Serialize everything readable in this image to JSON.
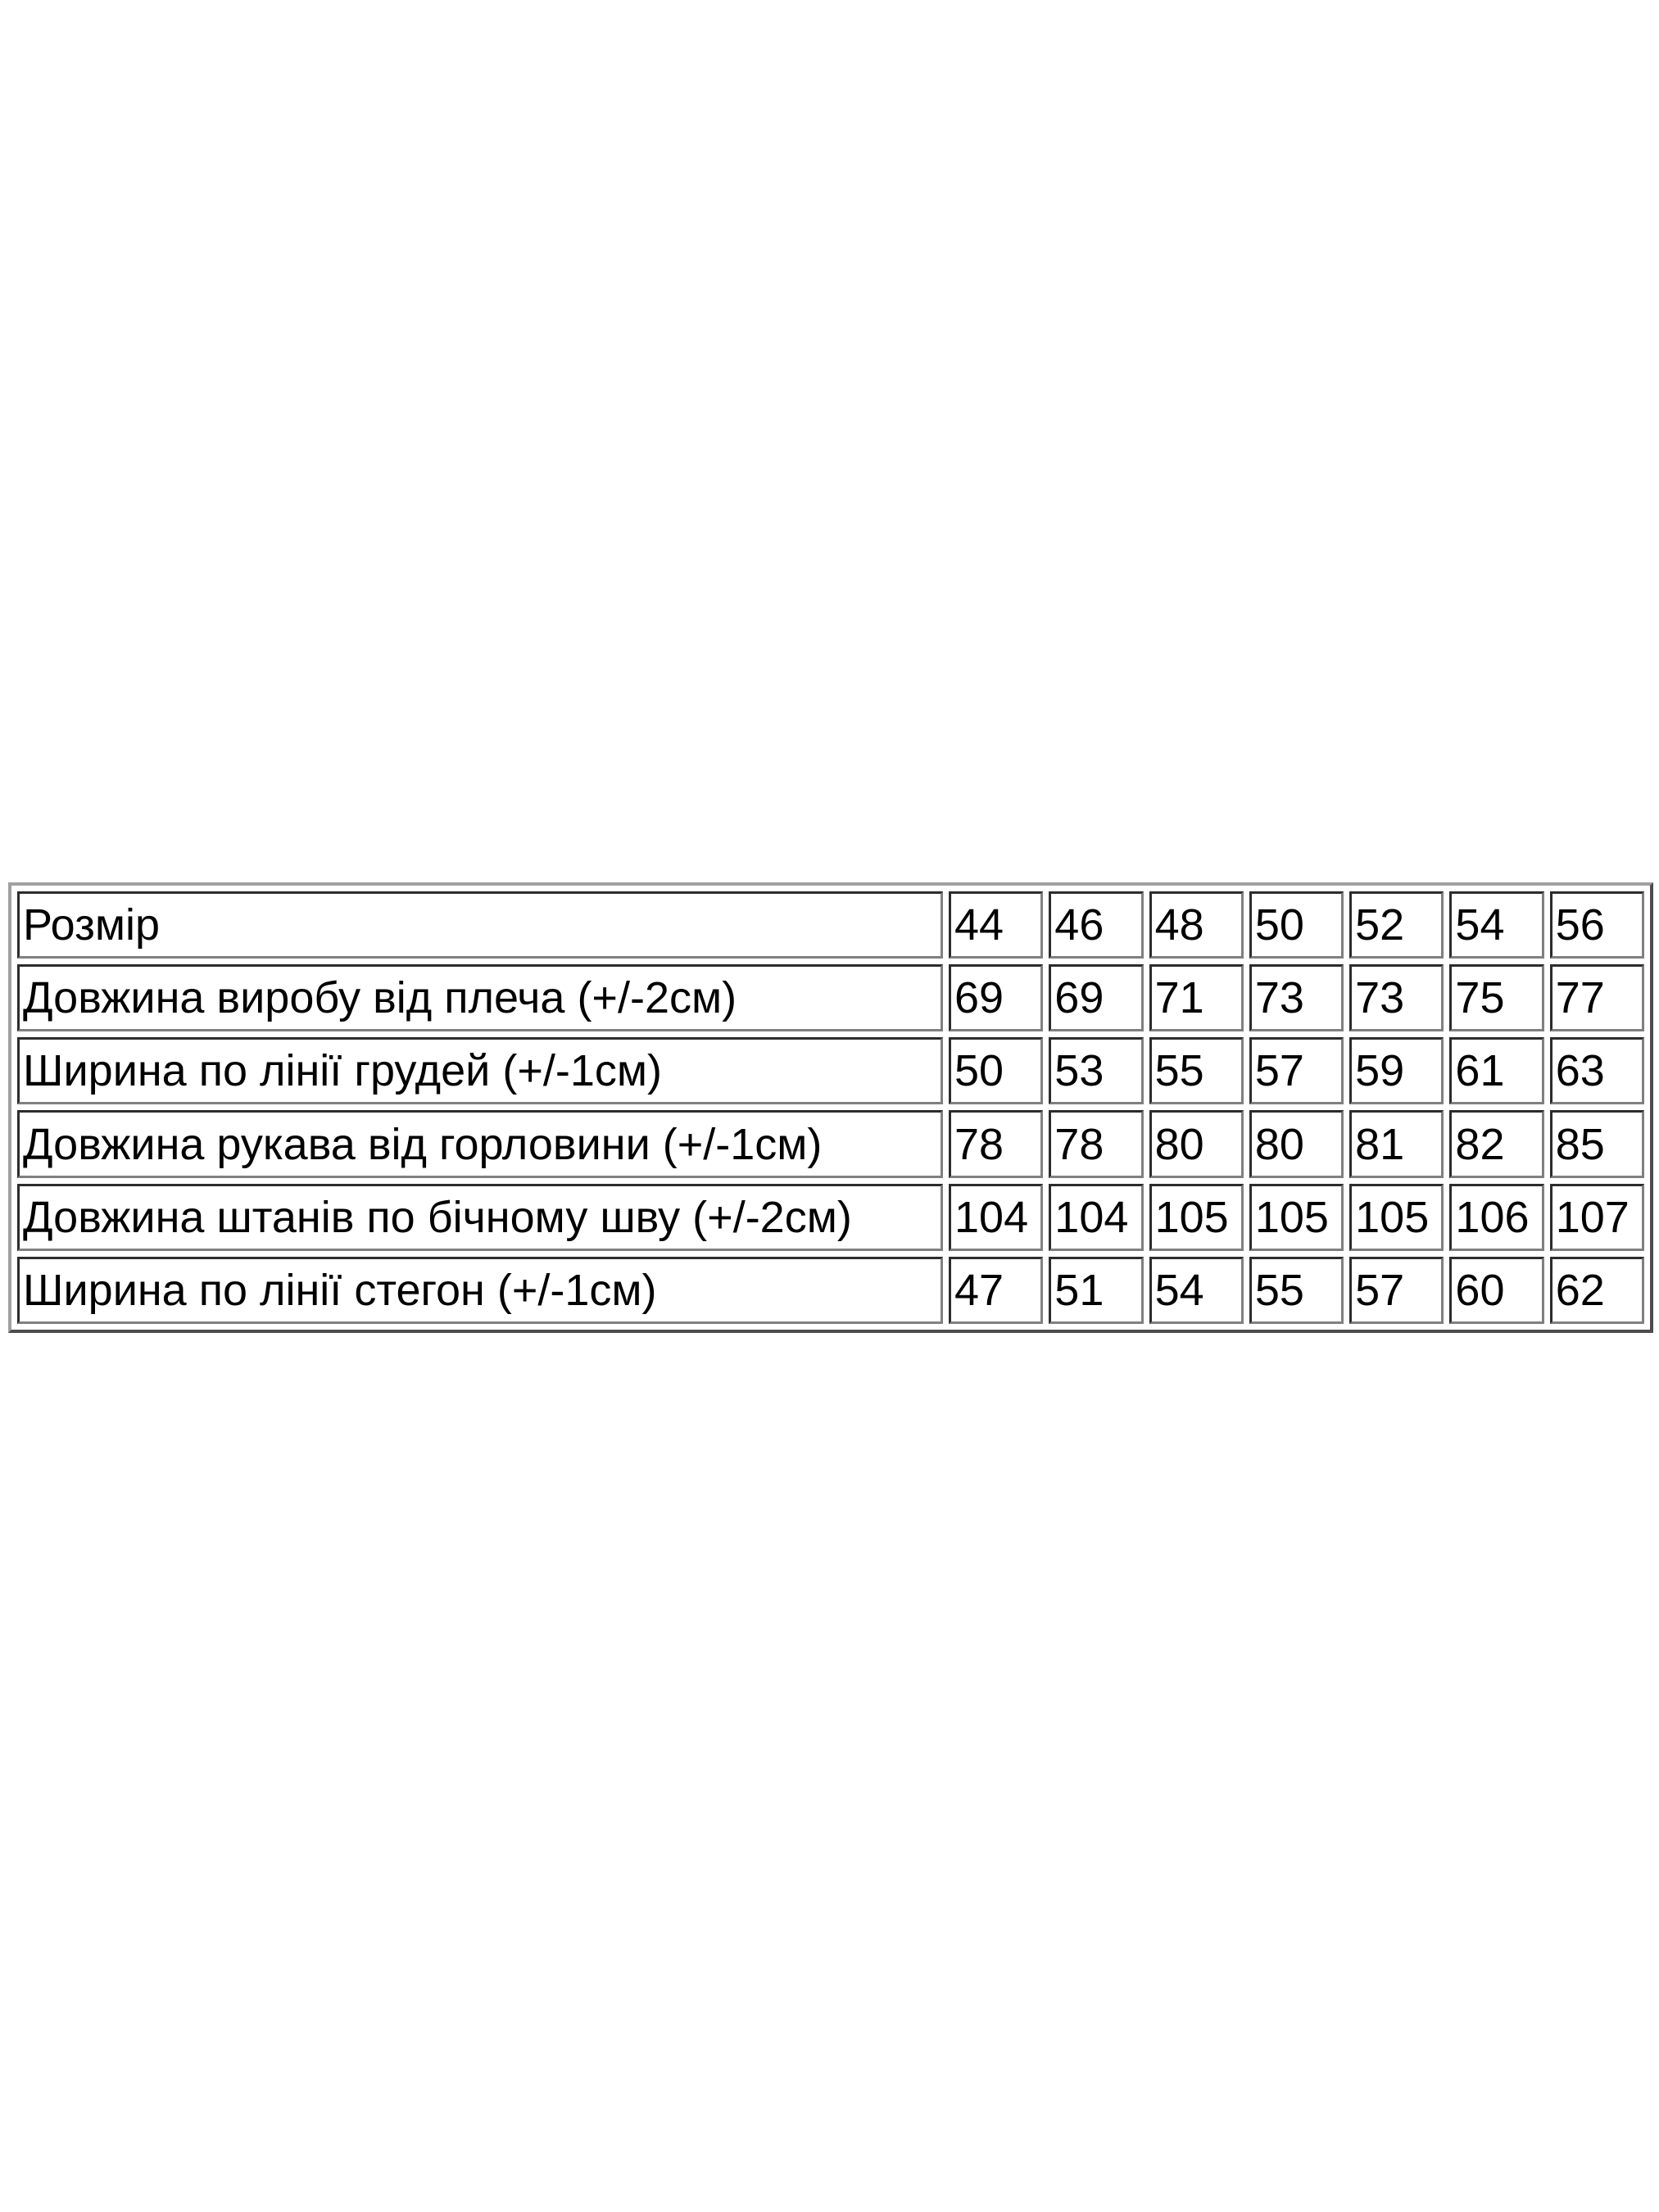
{
  "table": {
    "header": {
      "label": "Розмір",
      "sizes": [
        "44",
        "46",
        "48",
        "50",
        "52",
        "54",
        "56"
      ]
    },
    "rows": [
      {
        "label": "Довжина виробу від плеча (+/-2см)",
        "values": [
          "69",
          "69",
          "71",
          "73",
          "73",
          "75",
          "77"
        ]
      },
      {
        "label": "Ширина по лінії грудей (+/-1см)",
        "values": [
          "50",
          "53",
          "55",
          "57",
          "59",
          "61",
          "63"
        ]
      },
      {
        "label": "Довжина рукава від горловини (+/-1см)",
        "values": [
          "78",
          "78",
          "80",
          "80",
          "81",
          "82",
          "85"
        ]
      },
      {
        "label": "Довжина штанів по бічному шву (+/-2см)",
        "values": [
          "104",
          "104",
          "105",
          "105",
          "105",
          "106",
          "107"
        ]
      },
      {
        "label": "Ширина по лінії стегон (+/-1см)",
        "values": [
          "47",
          "51",
          "54",
          "55",
          "57",
          "60",
          "62"
        ]
      }
    ]
  }
}
